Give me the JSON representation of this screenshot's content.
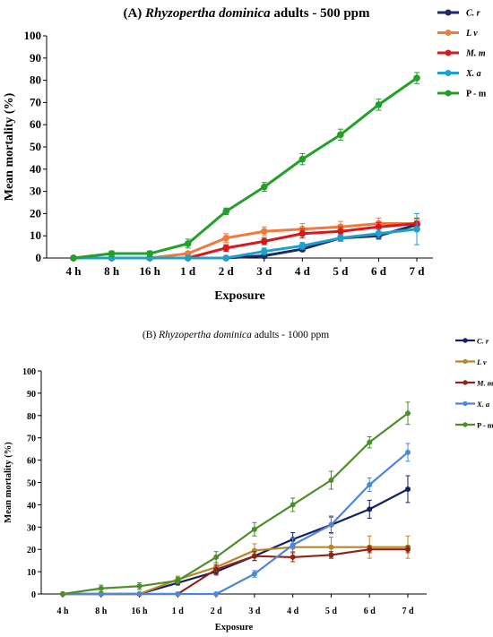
{
  "chart_data": [
    {
      "type": "line",
      "title_label": "(A)",
      "title_species": "Rhyzopertha dominica",
      "title_suffix": "adults - 500 ppm",
      "xlabel": "Exposure",
      "ylabel": "Mean mortality (%)",
      "ylim": [
        0,
        100
      ],
      "yticks": [
        "0",
        "10",
        "20",
        "30",
        "40",
        "50",
        "60",
        "70",
        "80",
        "90",
        "100"
      ],
      "categories": [
        "4 h",
        "8 h",
        "16 h",
        "1 d",
        "2 d",
        "3 d",
        "4 d",
        "5 d",
        "6 d",
        "7 d"
      ],
      "legend_position": "right",
      "series": [
        {
          "name": "C. r",
          "italic": true,
          "color": "#1c2a66",
          "values": [
            0,
            0,
            0,
            0,
            0,
            1,
            4,
            9,
            10,
            15
          ],
          "errors": [
            0,
            0,
            0,
            0,
            0,
            0.8,
            1,
            1,
            1.5,
            1.5
          ]
        },
        {
          "name": "L v",
          "italic": true,
          "color": "#f07a3c",
          "values": [
            0,
            0,
            0,
            2,
            9,
            12,
            13,
            14,
            15.5,
            15.5
          ],
          "errors": [
            0,
            0,
            0,
            0.8,
            2,
            2,
            2.5,
            2.5,
            2.5,
            2
          ]
        },
        {
          "name": "M. m",
          "italic": true,
          "color": "#d8181c",
          "values": [
            0,
            0,
            0,
            0,
            4.5,
            7.5,
            11,
            12,
            14,
            15.5
          ],
          "errors": [
            0,
            0,
            0,
            0,
            1.5,
            1.5,
            2,
            2,
            2,
            2.5
          ]
        },
        {
          "name": "X. a",
          "italic": true,
          "color": "#1ea0cc",
          "values": [
            0,
            0,
            0,
            0,
            0,
            3,
            5.5,
            9,
            11,
            13
          ],
          "errors": [
            0,
            0,
            0,
            0,
            0,
            1.5,
            1.5,
            1.5,
            2,
            7
          ]
        },
        {
          "name": "P - m",
          "italic": false,
          "color": "#22a02a",
          "values": [
            0,
            2,
            2,
            6.5,
            21,
            32,
            44.5,
            55.5,
            69,
            81
          ],
          "errors": [
            0,
            1.2,
            1.2,
            2,
            1.5,
            2,
            2.5,
            2.5,
            2.5,
            2.5
          ]
        }
      ]
    },
    {
      "type": "line",
      "title_label": "(B)",
      "title_species": "Rhyzopertha dominica",
      "title_suffix": "adults - 1000 ppm",
      "xlabel": "Exposure",
      "ylabel": "Mean mortality (%)",
      "ylim": [
        0,
        100
      ],
      "yticks": [
        "0",
        "10",
        "20",
        "30",
        "40",
        "50",
        "60",
        "70",
        "80",
        "90",
        "100"
      ],
      "categories": [
        "4 h",
        "8 h",
        "16 h",
        "1 d",
        "2 d",
        "3 d",
        "4 d",
        "5 d",
        "6 d",
        "7 d"
      ],
      "legend_position": "right",
      "series": [
        {
          "name": "C. r",
          "italic": true,
          "color": "#152061",
          "values": [
            0,
            0,
            0,
            5,
            10,
            17,
            24.5,
            31,
            38,
            47
          ],
          "errors": [
            0,
            0,
            0,
            1,
            1.5,
            2,
            3,
            3.5,
            4,
            6
          ]
        },
        {
          "name": "L v",
          "italic": true,
          "color": "#b8862a",
          "values": [
            0,
            0,
            0,
            6.5,
            12,
            19.5,
            21,
            21,
            21,
            21
          ],
          "errors": [
            0,
            0,
            0,
            1.5,
            2,
            3,
            4,
            4.5,
            5,
            5
          ]
        },
        {
          "name": "M. m",
          "italic": true,
          "color": "#8f2416",
          "values": [
            0,
            0,
            0,
            0,
            11,
            17,
            16.5,
            17.5,
            20,
            20
          ],
          "errors": [
            0,
            0,
            0,
            0,
            2,
            2,
            2,
            1.5,
            1.5,
            1.5
          ]
        },
        {
          "name": "X. a",
          "italic": true,
          "color": "#4d87d6",
          "values": [
            0,
            0,
            0,
            0,
            0,
            9,
            22,
            31,
            49,
            63.5
          ],
          "errors": [
            0,
            0,
            0,
            0,
            0,
            1.5,
            3,
            4,
            3,
            4
          ]
        },
        {
          "name": "P - m",
          "italic": false,
          "color": "#4b8e2a",
          "values": [
            0,
            2.5,
            3.5,
            6,
            16.5,
            29,
            40,
            51,
            68,
            81
          ],
          "errors": [
            0,
            1.5,
            1.5,
            1.5,
            2.5,
            3,
            3,
            4,
            2.5,
            5
          ]
        }
      ]
    }
  ]
}
